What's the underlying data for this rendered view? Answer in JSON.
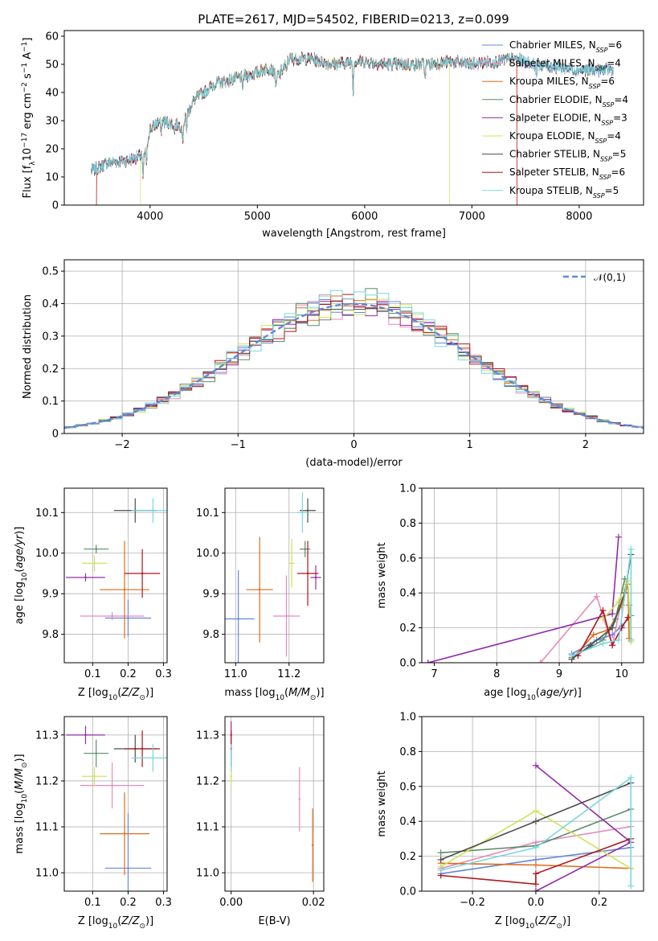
{
  "figure_title": "PLATE=2617, MJD=54502, FIBERID=0213, z=0.099",
  "series_names": [
    "Chabrier MILES, N_SSP=6",
    "Salpeter MILES, N_SSP=4",
    "Kroupa MILES, N_SSP=6",
    "Chabrier ELODIE, N_SSP=4",
    "Salpeter ELODIE, N_SSP=3",
    "Kroupa ELODIE, N_SSP=4",
    "Chabrier STELIB, N_SSP=5",
    "Salpeter STELIB, N_SSP=6",
    "Kroupa STELIB, N_SSP=5"
  ],
  "chart_data": [
    {
      "id": "spectrum",
      "type": "line",
      "xlabel": "wavelength [Angstrom, rest frame]",
      "ylabel": "Flux [f_λ 10^-17 erg cm^-2 s^-1 A^-1]",
      "xlim": [
        3200,
        8600
      ],
      "ylim": [
        0,
        62
      ],
      "xticks": [
        4000,
        5000,
        6000,
        7000,
        8000
      ],
      "yticks": [
        0,
        10,
        20,
        30,
        40,
        50,
        60
      ],
      "continuum_knots": [
        [
          3450,
          12
        ],
        [
          3600,
          15
        ],
        [
          3800,
          16
        ],
        [
          3950,
          18
        ],
        [
          4000,
          27
        ],
        [
          4100,
          30
        ],
        [
          4300,
          28
        ],
        [
          4400,
          37
        ],
        [
          4600,
          43
        ],
        [
          4800,
          45
        ],
        [
          5000,
          47
        ],
        [
          5100,
          49
        ],
        [
          5200,
          46
        ],
        [
          5300,
          52
        ],
        [
          5500,
          52
        ],
        [
          5700,
          50
        ],
        [
          5900,
          51
        ],
        [
          6000,
          51
        ],
        [
          6200,
          50
        ],
        [
          6400,
          50
        ],
        [
          6600,
          50
        ],
        [
          6800,
          51
        ],
        [
          7000,
          50
        ],
        [
          7200,
          51
        ],
        [
          7400,
          52
        ],
        [
          7600,
          50
        ],
        [
          7800,
          49
        ],
        [
          8000,
          48
        ],
        [
          8300,
          48
        ]
      ],
      "absorption_features": [
        [
          3934,
          -9
        ],
        [
          3968,
          -8
        ],
        [
          4102,
          -5
        ],
        [
          4227,
          -3
        ],
        [
          4304,
          -6
        ],
        [
          4340,
          -5
        ],
        [
          4861,
          -5
        ],
        [
          5175,
          -6
        ],
        [
          5270,
          -3
        ],
        [
          5893,
          -10
        ],
        [
          6563,
          -5
        ],
        [
          7600,
          -4
        ]
      ],
      "legend_position": "upper right",
      "series": [
        {
          "name": "Chabrier MILES, N_SSP=6",
          "color": "#6488d8"
        },
        {
          "name": "Salpeter MILES, N_SSP=4",
          "color": "#e58bbd"
        },
        {
          "name": "Kroupa MILES, N_SSP=6",
          "color": "#df6c18",
          "range": [
            3500,
            7420
          ]
        },
        {
          "name": "Chabrier ELODIE, N_SSP=4",
          "color": "#5a8c69"
        },
        {
          "name": "Salpeter ELODIE, N_SSP=3",
          "color": "#902ca8"
        },
        {
          "name": "Kroupa ELODIE, N_SSP=4",
          "color": "#cfe35a",
          "range": [
            3910,
            6790
          ]
        },
        {
          "name": "Chabrier STELIB, N_SSP=5",
          "color": "#4d4d4d"
        },
        {
          "name": "Salpeter STELIB, N_SSP=6",
          "color": "#b0151c",
          "range": [
            3500,
            7420
          ]
        },
        {
          "name": "Kroupa STELIB, N_SSP=5",
          "color": "#79d8de"
        }
      ]
    },
    {
      "id": "residual_hist",
      "type": "bar",
      "xlabel": "(data-model)/error",
      "ylabel": "Normed distribution",
      "xlim": [
        -2.5,
        2.5
      ],
      "ylim": [
        0,
        0.535
      ],
      "xticks": [
        -2,
        -1,
        0,
        1,
        2
      ],
      "yticks": [
        0.0,
        0.1,
        0.2,
        0.3,
        0.4,
        0.5
      ],
      "bin_width": 0.1,
      "grid": true,
      "reference_curve": {
        "label": "𝒩(0,1)",
        "type": "normal",
        "mean": 0,
        "sigma": 1,
        "color": "#5b8bd8"
      },
      "histogram_noise": [
        0.04,
        0.05,
        0.035,
        0.06,
        0.04,
        0.05,
        0.03,
        0.045,
        0.055
      ],
      "series_colors": [
        "#6488d8",
        "#e58bbd",
        "#df6c18",
        "#5a8c69",
        "#902ca8",
        "#cfe35a",
        "#4d4d4d",
        "#b0151c",
        "#79d8de"
      ]
    },
    {
      "id": "age_vs_Z",
      "type": "scatter",
      "xlabel": "Z [log10(Z/Z_sun)]",
      "ylabel": "age [log10(age/yr)]",
      "xlim": [
        0.02,
        0.31
      ],
      "ylim": [
        9.73,
        10.16
      ],
      "xticks": [
        0.1,
        0.2,
        0.3
      ],
      "yticks": [
        9.8,
        9.9,
        10.0,
        10.1
      ],
      "grid": true,
      "points": [
        {
          "series": 0,
          "x": 0.2,
          "y": 9.84,
          "xerr": 0.065,
          "yerr": 0.045
        },
        {
          "series": 1,
          "x": 0.155,
          "y": 9.845,
          "xerr": 0.09,
          "yerr": 0.01
        },
        {
          "series": 2,
          "x": 0.19,
          "y": 9.91,
          "xerr": 0.07,
          "yerr": 0.12
        },
        {
          "series": 3,
          "x": 0.11,
          "y": 10.01,
          "xerr": 0.035,
          "yerr": 0.01
        },
        {
          "series": 4,
          "x": 0.08,
          "y": 9.94,
          "xerr": 0.055,
          "yerr": 0.01
        },
        {
          "series": 5,
          "x": 0.105,
          "y": 9.975,
          "xerr": 0.035,
          "yerr": 0.02
        },
        {
          "series": 6,
          "x": 0.22,
          "y": 10.105,
          "xerr": 0.06,
          "yerr": 0.03
        },
        {
          "series": 7,
          "x": 0.24,
          "y": 9.95,
          "xerr": 0.05,
          "yerr": 0.06
        },
        {
          "series": 8,
          "x": 0.27,
          "y": 10.105,
          "xerr": 0.06,
          "yerr": 0.03
        }
      ]
    },
    {
      "id": "age_vs_mass",
      "type": "scatter",
      "xlabel": "mass [log10(M/M_sun)]",
      "ylabel": "",
      "xlim": [
        10.96,
        11.33
      ],
      "ylim": [
        9.73,
        10.16
      ],
      "xticks": [
        11.0,
        11.2
      ],
      "yticks": [
        9.8,
        9.9,
        10.0,
        10.1
      ],
      "grid": true,
      "points": [
        {
          "series": 0,
          "x": 11.01,
          "y": 9.838,
          "xerr": 0.06,
          "yerr": 0.12
        },
        {
          "series": 1,
          "x": 11.19,
          "y": 9.845,
          "xerr": 0.05,
          "yerr": 0.1
        },
        {
          "series": 2,
          "x": 11.09,
          "y": 9.91,
          "xerr": 0.05,
          "yerr": 0.13
        },
        {
          "series": 3,
          "x": 11.26,
          "y": 10.01,
          "xerr": 0.02,
          "yerr": 0.02
        },
        {
          "series": 4,
          "x": 11.3,
          "y": 9.94,
          "xerr": 0.02,
          "yerr": 0.03
        },
        {
          "series": 5,
          "x": 11.21,
          "y": 9.975,
          "xerr": 0.01,
          "yerr": 0.06
        },
        {
          "series": 6,
          "x": 11.27,
          "y": 10.105,
          "xerr": 0.03,
          "yerr": 0.03
        },
        {
          "series": 7,
          "x": 11.27,
          "y": 9.95,
          "xerr": 0.04,
          "yerr": 0.08
        },
        {
          "series": 8,
          "x": 11.25,
          "y": 10.1,
          "xerr": 0.02,
          "yerr": 0.05
        }
      ]
    },
    {
      "id": "mass_weight_vs_age",
      "type": "line",
      "xlabel": "age [log10(age/yr)]",
      "ylabel": "mass weight",
      "xlim": [
        6.8,
        10.35
      ],
      "ylim": [
        0,
        1.0
      ],
      "xticks": [
        7,
        8,
        9,
        10
      ],
      "yticks": [
        0.0,
        0.2,
        0.4,
        0.6,
        0.8,
        1.0
      ],
      "grid": true,
      "series": [
        {
          "series": 0,
          "points": [
            [
              9.2,
              0.05
            ],
            [
              9.6,
              0.13
            ],
            [
              9.85,
              0.16
            ],
            [
              10.0,
              0.21
            ],
            [
              10.15,
              0.27
            ],
            [
              10.12,
              0.33
            ]
          ]
        },
        {
          "series": 1,
          "points": [
            [
              8.7,
              0.0
            ],
            [
              9.6,
              0.38
            ],
            [
              9.85,
              0.1
            ],
            [
              10.0,
              0.36
            ]
          ]
        },
        {
          "series": 2,
          "points": [
            [
              9.2,
              0.02
            ],
            [
              9.55,
              0.16
            ],
            [
              9.8,
              0.19
            ],
            [
              10.0,
              0.33
            ],
            [
              10.1,
              0.45
            ],
            [
              10.12,
              0.14
            ]
          ]
        },
        {
          "series": 3,
          "points": [
            [
              9.2,
              0.03
            ],
            [
              9.7,
              0.13
            ],
            [
              9.9,
              0.25
            ],
            [
              10.05,
              0.48
            ]
          ]
        },
        {
          "series": 4,
          "points": [
            [
              6.9,
              0.0
            ],
            [
              9.85,
              0.28
            ],
            [
              9.95,
              0.72
            ]
          ]
        },
        {
          "series": 5,
          "points": [
            [
              9.7,
              0.25
            ],
            [
              9.95,
              0.35
            ],
            [
              10.1,
              0.47
            ],
            [
              10.15,
              0.12
            ]
          ]
        },
        {
          "series": 6,
          "points": [
            [
              9.2,
              0.02
            ],
            [
              9.5,
              0.1
            ],
            [
              9.85,
              0.2
            ],
            [
              10.05,
              0.4
            ],
            [
              10.15,
              0.62
            ]
          ]
        },
        {
          "series": 7,
          "points": [
            [
              9.3,
              0.04
            ],
            [
              9.7,
              0.3
            ],
            [
              9.85,
              0.1
            ],
            [
              10.0,
              0.2
            ],
            [
              10.1,
              0.26
            ]
          ]
        },
        {
          "series": 8,
          "points": [
            [
              9.2,
              0.04
            ],
            [
              9.7,
              0.11
            ],
            [
              9.95,
              0.13
            ],
            [
              10.15,
              0.65
            ],
            [
              10.15,
              0.13
            ]
          ]
        }
      ]
    },
    {
      "id": "mass_vs_Z",
      "type": "scatter",
      "xlabel": "Z [log10(Z/Z_sun)]",
      "ylabel": "mass [log10(M/M_sun)]",
      "xlim": [
        0.02,
        0.31
      ],
      "ylim": [
        10.96,
        11.34
      ],
      "xticks": [
        0.1,
        0.2,
        0.3
      ],
      "yticks": [
        11.0,
        11.1,
        11.2,
        11.3
      ],
      "grid": true,
      "points": [
        {
          "series": 0,
          "x": 0.2,
          "y": 11.01,
          "xerr": 0.065,
          "yerr": 0.12
        },
        {
          "series": 1,
          "x": 0.155,
          "y": 11.19,
          "xerr": 0.09,
          "yerr": 0.05
        },
        {
          "series": 2,
          "x": 0.19,
          "y": 11.085,
          "xerr": 0.07,
          "yerr": 0.09
        },
        {
          "series": 3,
          "x": 0.11,
          "y": 11.26,
          "xerr": 0.035,
          "yerr": 0.03
        },
        {
          "series": 4,
          "x": 0.08,
          "y": 11.3,
          "xerr": 0.055,
          "yerr": 0.02
        },
        {
          "series": 5,
          "x": 0.105,
          "y": 11.21,
          "xerr": 0.035,
          "yerr": 0.02
        },
        {
          "series": 6,
          "x": 0.22,
          "y": 11.27,
          "xerr": 0.06,
          "yerr": 0.03
        },
        {
          "series": 7,
          "x": 0.24,
          "y": 11.27,
          "xerr": 0.05,
          "yerr": 0.04
        },
        {
          "series": 8,
          "x": 0.27,
          "y": 11.25,
          "xerr": 0.06,
          "yerr": 0.03
        }
      ]
    },
    {
      "id": "mass_vs_EBV",
      "type": "scatter",
      "xlabel": "E(B-V)",
      "ylabel": "",
      "xlim": [
        -0.0015,
        0.0225
      ],
      "ylim": [
        10.96,
        11.34
      ],
      "xticks": [
        0.0,
        0.02
      ],
      "yticks": [
        11.0,
        11.1,
        11.2,
        11.3
      ],
      "grid": true,
      "points": [
        {
          "series": 1,
          "x": 0.0166,
          "y": 11.16,
          "xerr": 0,
          "yerr": 0.07
        },
        {
          "series": 2,
          "x": 0.0198,
          "y": 11.06,
          "xerr": 0,
          "yerr": 0.08
        },
        {
          "series": 4,
          "x": 0.0,
          "y": 11.3,
          "xerr": 0,
          "yerr": 0.03
        },
        {
          "series": 5,
          "x": 0.0,
          "y": 11.21,
          "xerr": 0,
          "yerr": 0.02
        },
        {
          "series": 7,
          "x": 0.0,
          "y": 11.27,
          "xerr": 0,
          "yerr": 0.04
        },
        {
          "series": 8,
          "x": 0.0,
          "y": 11.25,
          "xerr": 0,
          "yerr": 0.03
        }
      ]
    },
    {
      "id": "mass_weight_vs_Z",
      "type": "line",
      "xlabel": "Z [log10(Z/Z_sun)]",
      "ylabel": "mass weight",
      "xlim": [
        -0.36,
        0.34
      ],
      "ylim": [
        0,
        1.0
      ],
      "xticks": [
        -0.2,
        0.0,
        0.2
      ],
      "yticks": [
        0.0,
        0.2,
        0.4,
        0.6,
        0.8,
        1.0
      ],
      "grid": true,
      "series": [
        {
          "series": 0,
          "points": [
            [
              -0.3,
              0.1
            ],
            [
              0.0,
              0.18
            ],
            [
              0.3,
              0.25
            ]
          ]
        },
        {
          "series": 1,
          "points": [
            [
              -0.3,
              0.13
            ],
            [
              0.0,
              0.28
            ],
            [
              0.3,
              0.37
            ]
          ]
        },
        {
          "series": 2,
          "points": [
            [
              -0.3,
              0.16
            ],
            [
              0.0,
              0.15
            ],
            [
              0.3,
              0.13
            ]
          ]
        },
        {
          "series": 3,
          "points": [
            [
              -0.3,
              0.22
            ],
            [
              0.0,
              0.26
            ],
            [
              0.3,
              0.47
            ]
          ]
        },
        {
          "series": 4,
          "points": [
            [
              0.0,
              0.0
            ],
            [
              0.3,
              0.28
            ],
            [
              0.0,
              0.72
            ]
          ]
        },
        {
          "series": 5,
          "points": [
            [
              -0.3,
              0.14
            ],
            [
              0.0,
              0.46
            ],
            [
              0.3,
              0.13
            ]
          ]
        },
        {
          "series": 6,
          "points": [
            [
              -0.3,
              0.18
            ],
            [
              0.0,
              0.4
            ],
            [
              0.3,
              0.62
            ]
          ]
        },
        {
          "series": 7,
          "points": [
            [
              -0.3,
              0.09
            ],
            [
              0.0,
              0.04
            ],
            [
              0.0,
              0.1
            ],
            [
              0.3,
              0.3
            ]
          ]
        },
        {
          "series": 8,
          "points": [
            [
              -0.3,
              0.12
            ],
            [
              0.0,
              0.25
            ],
            [
              0.3,
              0.65
            ],
            [
              0.3,
              0.03
            ]
          ]
        }
      ]
    }
  ]
}
